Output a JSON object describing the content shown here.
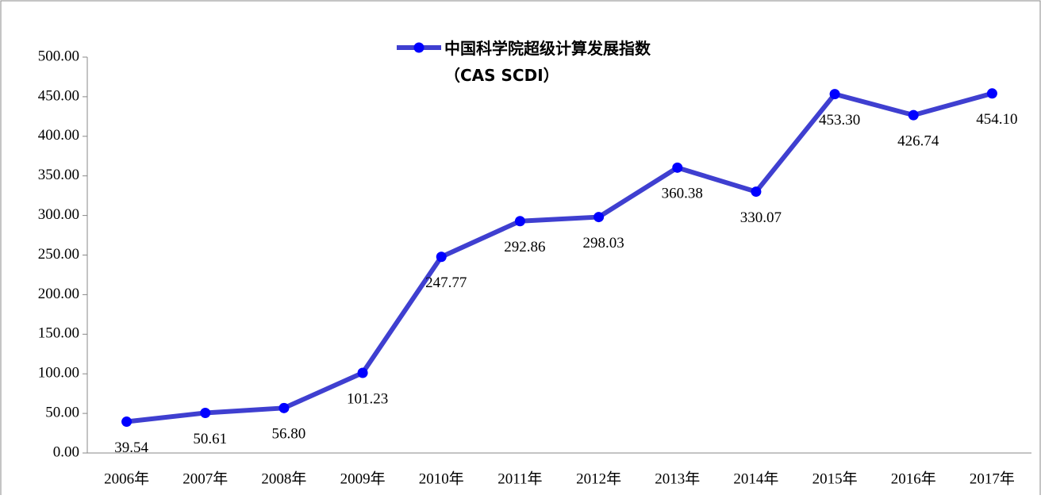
{
  "chart_data": {
    "type": "line",
    "categories": [
      "2006年",
      "2007年",
      "2008年",
      "2009年",
      "2010年",
      "2011年",
      "2012年",
      "2013年",
      "2014年",
      "2015年",
      "2016年",
      "2017年"
    ],
    "series": [
      {
        "name": "中国科学院超级计算发展指数\n（CAS SCDI）",
        "color": "#3f3fd0",
        "marker_color": "#0000ff",
        "values": [
          39.54,
          50.61,
          56.8,
          101.23,
          247.77,
          292.86,
          298.03,
          360.38,
          330.07,
          453.3,
          426.74,
          454.1
        ],
        "value_labels": [
          "39.54",
          "50.61",
          "56.80",
          "101.23",
          "247.77",
          "292.86",
          "298.03",
          "360.38",
          "330.07",
          "453.30",
          "426.74",
          "454.10"
        ]
      }
    ],
    "ylim": [
      0,
      500
    ],
    "yticks": [
      {
        "value": 0,
        "label": "0.00"
      },
      {
        "value": 50,
        "label": "50.00"
      },
      {
        "value": 100,
        "label": "100.00"
      },
      {
        "value": 150,
        "label": "150.00"
      },
      {
        "value": 200,
        "label": "200.00"
      },
      {
        "value": 250,
        "label": "250.00"
      },
      {
        "value": 300,
        "label": "300.00"
      },
      {
        "value": 350,
        "label": "350.00"
      },
      {
        "value": 400,
        "label": "400.00"
      },
      {
        "value": 450,
        "label": "450.00"
      },
      {
        "value": 500,
        "label": "500.00"
      }
    ],
    "grid": false,
    "legend": "top"
  }
}
